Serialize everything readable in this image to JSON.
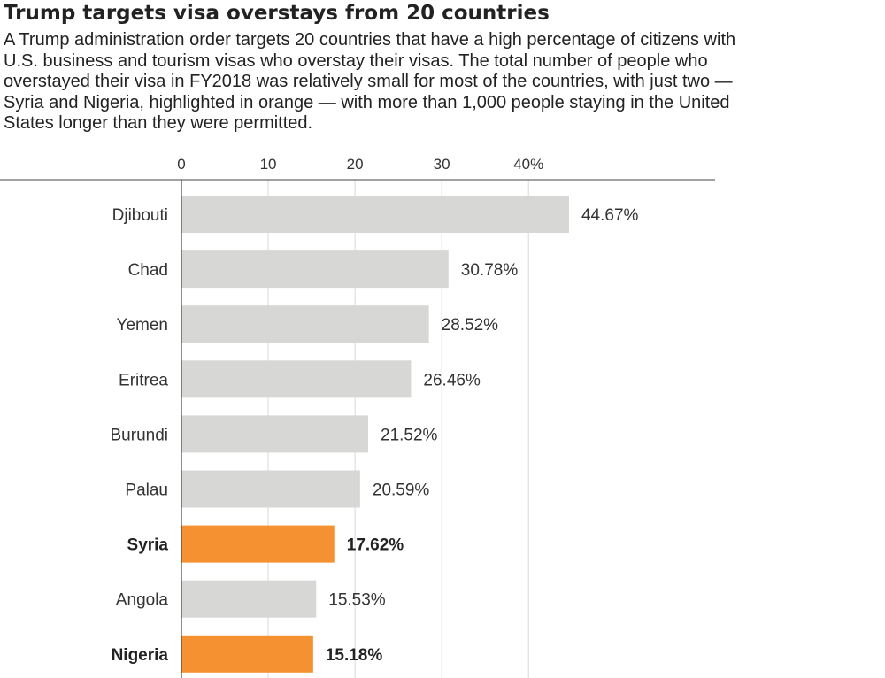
{
  "chart_data": {
    "type": "bar",
    "orientation": "horizontal",
    "title": "Trump targets visa overstays from 20 countries",
    "subtitle": "A Trump administration order targets 20 countries that have a high percentage of citizens with U.S. business and tourism visas who overstay their visas. The total number of people who overstayed their visa in FY2018 was relatively small for most of the countries, with just two — Syria and Nigeria, highlighted in orange — with more than 1,000 people staying in the United States longer than they were permitted.",
    "categories": [
      "Djibouti",
      "Chad",
      "Yemen",
      "Eritrea",
      "Burundi",
      "Palau",
      "Syria",
      "Angola",
      "Nigeria"
    ],
    "values": [
      44.67,
      30.78,
      28.52,
      26.46,
      21.52,
      20.59,
      17.62,
      15.53,
      15.18
    ],
    "value_labels": [
      "44.67%",
      "30.78%",
      "28.52%",
      "26.46%",
      "21.52%",
      "20.59%",
      "17.62%",
      "15.53%",
      "15.18%"
    ],
    "highlighted": [
      "Syria",
      "Nigeria"
    ],
    "xticks": [
      0,
      10,
      20,
      30,
      40
    ],
    "xtick_labels": [
      "0",
      "10",
      "20",
      "30",
      "40%"
    ],
    "xlim": [
      0,
      61.5
    ],
    "grid": true,
    "colors": {
      "bar": "#d7d7d5",
      "highlight": "#f59131",
      "grid": "#d9d9d9",
      "axis": "#444444"
    }
  }
}
